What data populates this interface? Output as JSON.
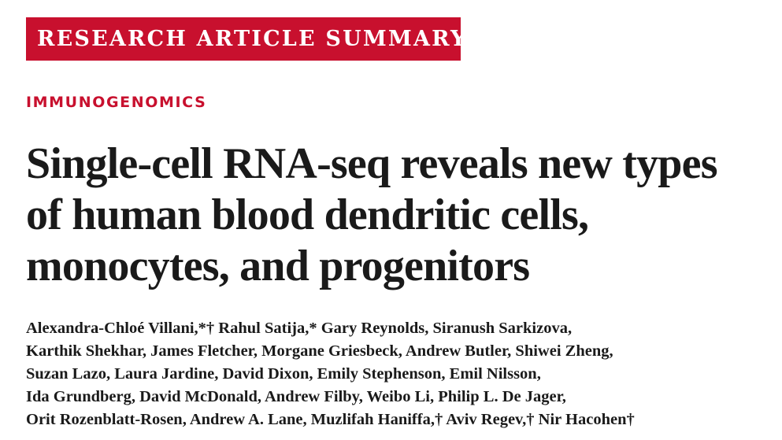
{
  "banner": {
    "label": "RESEARCH ARTICLE SUMMARY"
  },
  "section": {
    "label": "IMMUNOGENOMICS"
  },
  "title": {
    "lines": [
      "Single-cell RNA-seq reveals new types",
      "of human blood dendritic cells,",
      "monocytes, and progenitors"
    ]
  },
  "authors": {
    "lines": [
      "Alexandra-Chloé Villani,*† Rahul Satija,* Gary Reynolds, Siranush Sarkizova,",
      "Karthik Shekhar, James Fletcher, Morgane Griesbeck, Andrew Butler, Shiwei Zheng,",
      "Suzan Lazo, Laura Jardine, David Dixon, Emily Stephenson, Emil Nilsson,",
      "Ida Grundberg, David McDonald, Andrew Filby, Weibo Li, Philip L. De Jager,",
      "Orit Rozenblatt-Rosen, Andrew A. Lane, Muzlifah Haniffa,† Aviv Regev,† Nir Hacohen†"
    ]
  },
  "colors": {
    "accent": "#c8102e",
    "text": "#1a1a1a",
    "background": "#ffffff"
  }
}
